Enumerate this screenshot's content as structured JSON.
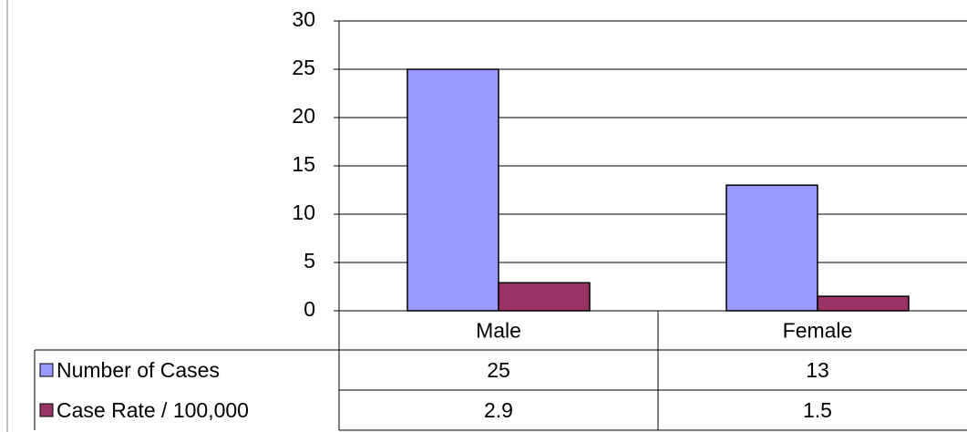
{
  "chart_data": {
    "type": "bar",
    "categories": [
      "Male",
      "Female"
    ],
    "series": [
      {
        "name": "Number of Cases",
        "color": "#9999ff",
        "values": [
          25,
          13
        ]
      },
      {
        "name": "Case Rate / 100,000",
        "color": "#993366",
        "values": [
          2.9,
          1.5
        ]
      }
    ],
    "ylim": [
      0,
      30
    ],
    "yticks": [
      0,
      5,
      10,
      15,
      20,
      25,
      30
    ],
    "grid": true,
    "data_table": true
  }
}
